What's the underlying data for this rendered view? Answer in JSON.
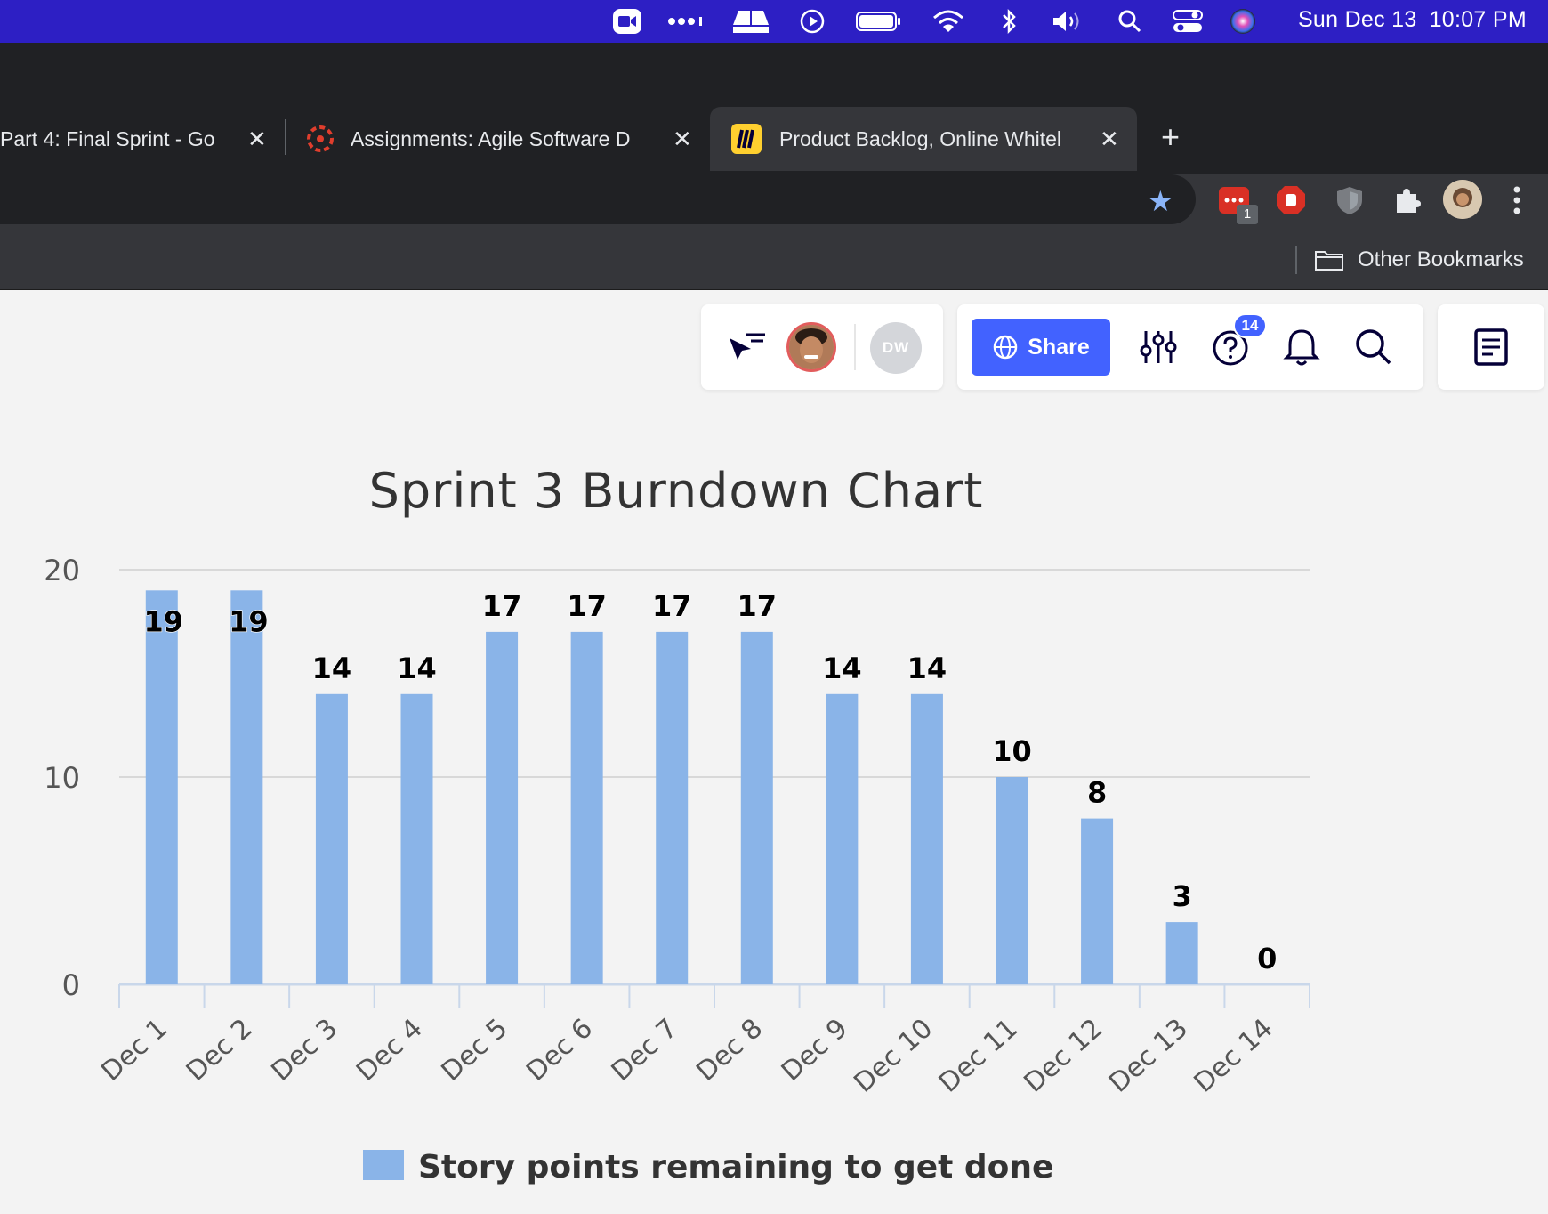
{
  "menubar": {
    "date": "Sun Dec 13",
    "time": "10:07 PM",
    "icons": [
      "zoom-icon",
      "dots-icon",
      "drive-icon",
      "play-icon",
      "battery-icon",
      "wifi-icon",
      "bluetooth-icon",
      "volume-icon",
      "spotlight-icon",
      "control-center-icon",
      "siri-icon"
    ]
  },
  "tabs": [
    {
      "title": "Part 4: Final Sprint - Go",
      "icon": "docs-icon"
    },
    {
      "title": "Assignments: Agile Software D",
      "icon": "canvas-icon"
    },
    {
      "title": "Product Backlog, Online Whitel",
      "icon": "miro-icon",
      "active": true
    }
  ],
  "toolbar": {
    "extension_badge": "1",
    "icons": [
      "star-icon",
      "extension-red-icon",
      "adblock-icon",
      "shield-icon",
      "puzzle-icon",
      "profile-avatar",
      "kebab-menu-icon"
    ]
  },
  "bookmarks": {
    "other_label": "Other Bookmarks"
  },
  "miro": {
    "collaborator_initials": "DW",
    "share_label": "Share",
    "help_badge": "14"
  },
  "chart_data": {
    "type": "bar",
    "title": "Sprint 3 Burndown Chart",
    "categories": [
      "Dec 1",
      "Dec 2",
      "Dec 3",
      "Dec 4",
      "Dec 5",
      "Dec 6",
      "Dec 7",
      "Dec 8",
      "Dec 9",
      "Dec 10",
      "Dec 11",
      "Dec 12",
      "Dec 13",
      "Dec 14"
    ],
    "series": [
      {
        "name": "Story points remaining to get done",
        "values": [
          19,
          19,
          14,
          14,
          17,
          17,
          17,
          17,
          14,
          14,
          10,
          8,
          3,
          0
        ],
        "color": "#8ab4e8"
      }
    ],
    "yticks": [
      0,
      10,
      20
    ],
    "ylim": [
      0,
      20
    ],
    "grid": true,
    "legend": "bottom"
  }
}
